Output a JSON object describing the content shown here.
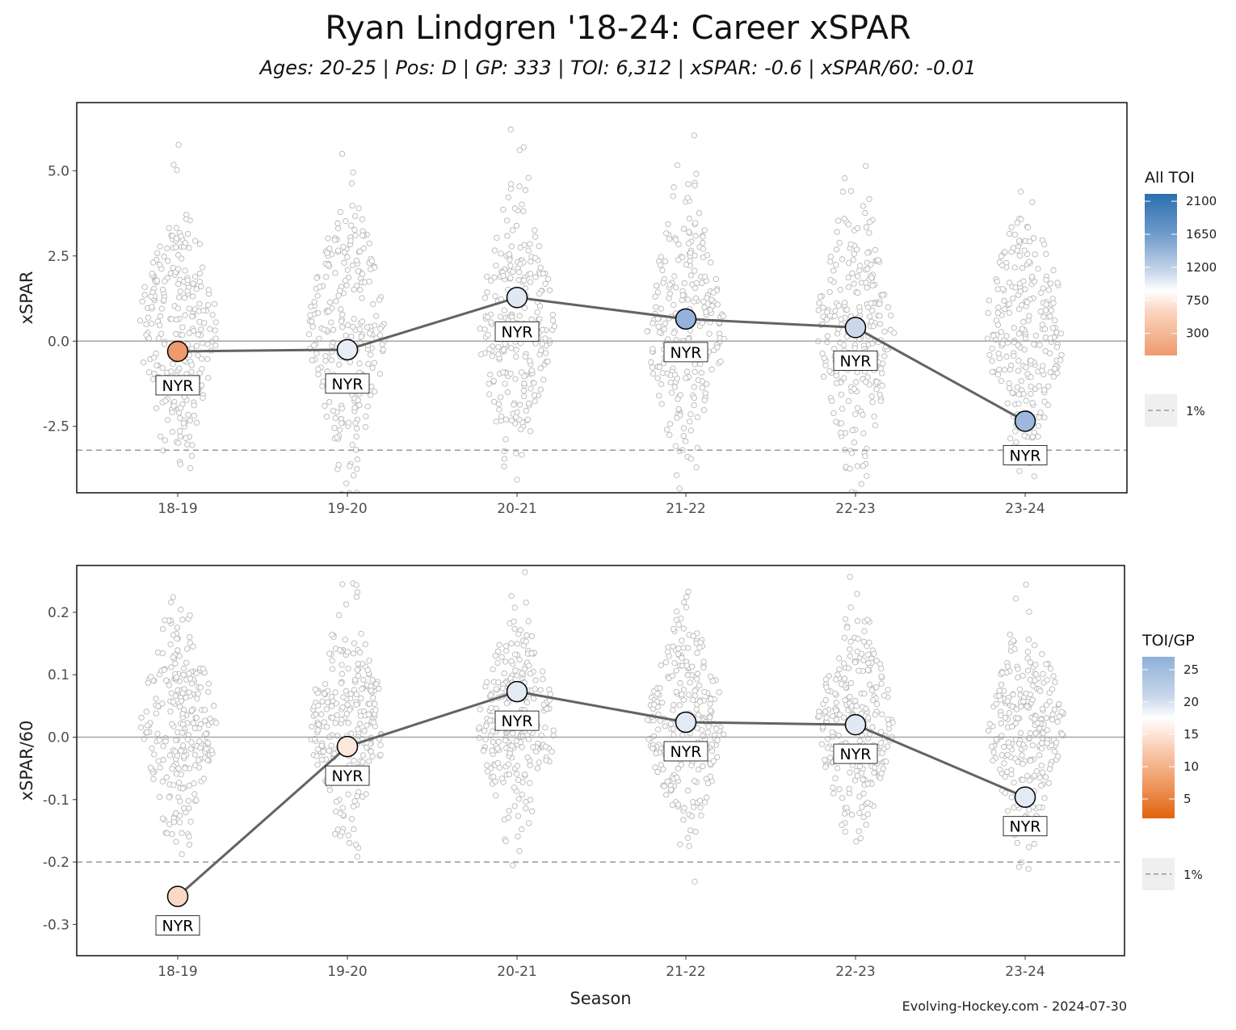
{
  "title": "Ryan Lindgren '18-24: Career xSPAR",
  "subtitle": "Ages: 20-25 | Pos: D | GP: 333 | TOI: 6,312 | xSPAR: -0.6 | xSPAR/60: -0.01",
  "credit": "Evolving-Hockey.com - 2024-07-30",
  "colors": {
    "line": "#636363",
    "zero_line": "#a6a6a6",
    "threshold_line": "#9a9a9a",
    "background_points": "#b8b8b8",
    "panel_border": "#000000"
  },
  "chart_data": [
    {
      "type": "line",
      "panel": "top",
      "xlabel": "",
      "ylabel": "xSPAR",
      "x": [
        "18-19",
        "19-20",
        "20-21",
        "21-22",
        "22-23",
        "23-24"
      ],
      "yticks": [
        -2.5,
        0.0,
        2.5,
        5.0
      ],
      "ytick_labels": [
        "-2.5",
        "0.0",
        "2.5",
        "5.0"
      ],
      "ylim": [
        -4.45,
        7.0
      ],
      "reference_lines": {
        "zero": 0,
        "percentile_1": -3.2
      },
      "series": [
        {
          "values": [
            -0.3,
            -0.25,
            1.28,
            0.65,
            0.4,
            -2.35
          ],
          "teams": [
            "NYR",
            "NYR",
            "NYR",
            "NYR",
            "NYR",
            "NYR"
          ],
          "all_toi": [
            310,
            900,
            1050,
            1550,
            1150,
            1480
          ],
          "fill_colors": [
            "#ee9a6c",
            "#e8eef6",
            "#e0e8f3",
            "#94b2dc",
            "#cbd8ec",
            "#9db7de"
          ]
        }
      ],
      "background_distribution": {
        "points_per_season": 250,
        "description_free": true
      },
      "legend": {
        "title": "All TOI",
        "colorbar_labels": [
          "2100",
          "1650",
          "1200",
          "750",
          "300"
        ],
        "colorbar_values": [
          2100,
          1650,
          1200,
          750,
          300
        ],
        "range": [
          0,
          2200
        ],
        "threshold_label": "1%"
      }
    },
    {
      "type": "line",
      "panel": "bottom",
      "xlabel": "Season",
      "ylabel": "xSPAR/60",
      "x": [
        "18-19",
        "19-20",
        "20-21",
        "21-22",
        "22-23",
        "23-24"
      ],
      "yticks": [
        -0.3,
        -0.2,
        -0.1,
        0.0,
        0.1,
        0.2
      ],
      "ytick_labels": [
        "-0.3",
        "-0.2",
        "-0.1",
        "0.0",
        "0.1",
        "0.2"
      ],
      "ylim": [
        -0.35,
        0.275
      ],
      "reference_lines": {
        "zero": 0,
        "percentile_1": -0.2
      },
      "series": [
        {
          "values": [
            -0.255,
            -0.015,
            0.073,
            0.024,
            0.02,
            -0.096
          ],
          "teams": [
            "NYR",
            "NYR",
            "NYR",
            "NYR",
            "NYR",
            "NYR"
          ],
          "toi_per_gp": [
            14.5,
            16.0,
            19.8,
            20.3,
            20.5,
            20.3
          ],
          "fill_colors": [
            "#fad8c4",
            "#fde8dc",
            "#e4ebf5",
            "#e2eaf4",
            "#e0e8f3",
            "#e2eaf4"
          ]
        }
      ],
      "background_distribution": {
        "points_per_season": 250
      },
      "legend": {
        "title": "TOI/GP",
        "colorbar_labels": [
          "25",
          "20",
          "15",
          "10",
          "5"
        ],
        "colorbar_values": [
          25,
          20,
          15,
          10,
          5
        ],
        "range": [
          2.0,
          27.0
        ],
        "threshold_label": "1%"
      }
    }
  ]
}
